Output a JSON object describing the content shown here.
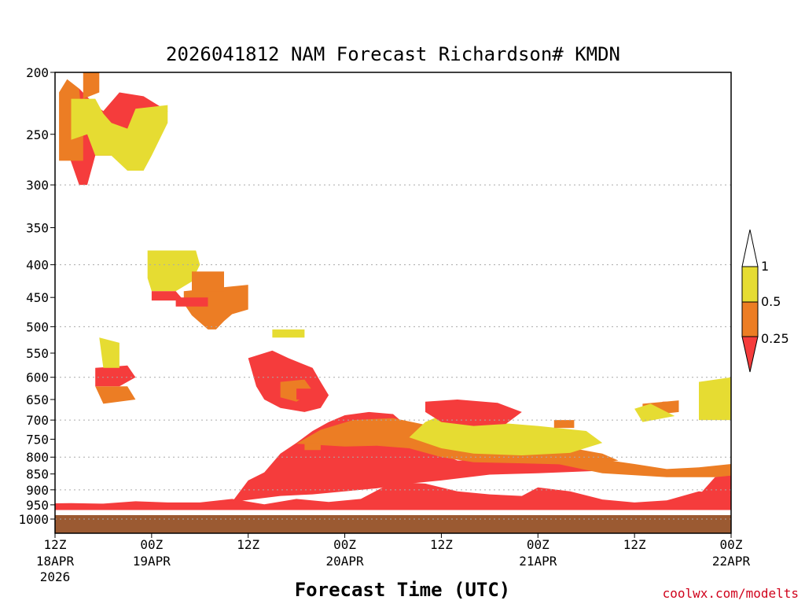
{
  "chart_data": {
    "type": "heatmap",
    "title": "2026041812 NAM Forecast Richardson# KMDN",
    "xlabel": "Forecast Time (UTC)",
    "ylabel": "",
    "credit": "coolwx.com/modelts",
    "x_range_hours": [
      0,
      84
    ],
    "x_ticks": [
      {
        "hour": 0,
        "label": "12Z",
        "sub": "18APR",
        "sub2": "2026"
      },
      {
        "hour": 12,
        "label": "00Z",
        "sub": "19APR",
        "sub2": ""
      },
      {
        "hour": 24,
        "label": "12Z",
        "sub": "",
        "sub2": ""
      },
      {
        "hour": 36,
        "label": "00Z",
        "sub": "20APR",
        "sub2": ""
      },
      {
        "hour": 48,
        "label": "12Z",
        "sub": "",
        "sub2": ""
      },
      {
        "hour": 60,
        "label": "00Z",
        "sub": "21APR",
        "sub2": ""
      },
      {
        "hour": 72,
        "label": "12Z",
        "sub": "",
        "sub2": ""
      },
      {
        "hour": 84,
        "label": "00Z",
        "sub": "22APR",
        "sub2": ""
      }
    ],
    "y_range_hPa": [
      1000,
      200
    ],
    "y_ticks": [
      200,
      250,
      300,
      350,
      400,
      450,
      500,
      550,
      600,
      650,
      700,
      750,
      800,
      850,
      900,
      950,
      1000
    ],
    "gridlines_hPa": [
      300,
      400,
      500,
      600,
      700,
      800,
      900,
      1000
    ],
    "colorbar": {
      "labels": [
        "1",
        "0.5",
        "0.25"
      ],
      "bins": [
        {
          "range": "0.5-1",
          "color": "#e6dc32"
        },
        {
          "range": "0.25-0.5",
          "color": "#ec7d24"
        },
        {
          "range": "<0.25",
          "color": "#f53c3c"
        }
      ],
      "over_color": "#ffffff",
      "under_color": "#f53c3c"
    },
    "ground_color": "#9b5a32",
    "regions": [
      {
        "cat": "low",
        "pts": [
          [
            0,
            968
          ],
          [
            84,
            968
          ],
          [
            84,
            918
          ],
          [
            80,
            905
          ],
          [
            76,
            935
          ],
          [
            72,
            942
          ],
          [
            68,
            932
          ],
          [
            64,
            905
          ],
          [
            60,
            892
          ],
          [
            58,
            920
          ],
          [
            54,
            915
          ],
          [
            50,
            905
          ],
          [
            46,
            880
          ],
          [
            42,
            875
          ],
          [
            38,
            930
          ],
          [
            34,
            940
          ],
          [
            30,
            930
          ],
          [
            26,
            948
          ],
          [
            22,
            930
          ],
          [
            18,
            942
          ],
          [
            14,
            942
          ],
          [
            10,
            938
          ],
          [
            6,
            946
          ],
          [
            2,
            944
          ],
          [
            0,
            945
          ]
        ]
      },
      {
        "cat": "low",
        "pts": [
          [
            22,
            940
          ],
          [
            24,
            870
          ],
          [
            26,
            845
          ],
          [
            28,
            790
          ],
          [
            30,
            760
          ],
          [
            32,
            728
          ],
          [
            34,
            705
          ],
          [
            36,
            688
          ],
          [
            39,
            680
          ],
          [
            42,
            685
          ],
          [
            44,
            720
          ],
          [
            46,
            760
          ],
          [
            48,
            790
          ],
          [
            50,
            810
          ],
          [
            55,
            808
          ],
          [
            60,
            812
          ],
          [
            66,
            816
          ],
          [
            68,
            840
          ],
          [
            60,
            848
          ],
          [
            54,
            852
          ],
          [
            48,
            870
          ],
          [
            44,
            880
          ],
          [
            40,
            895
          ],
          [
            36,
            905
          ],
          [
            32,
            915
          ],
          [
            28,
            920
          ]
        ]
      },
      {
        "cat": "mid",
        "pts": [
          [
            30,
            762
          ],
          [
            33,
            725
          ],
          [
            37,
            700
          ],
          [
            42,
            695
          ],
          [
            46,
            712
          ],
          [
            50,
            728
          ],
          [
            56,
            740
          ],
          [
            62,
            765
          ],
          [
            68,
            790
          ],
          [
            70,
            810
          ],
          [
            64,
            822
          ],
          [
            58,
            818
          ],
          [
            52,
            815
          ],
          [
            48,
            800
          ],
          [
            44,
            775
          ],
          [
            40,
            768
          ],
          [
            36,
            770
          ]
        ]
      },
      {
        "cat": "high",
        "pts": [
          [
            44,
            745
          ],
          [
            46,
            705
          ],
          [
            48,
            688
          ],
          [
            54,
            705
          ],
          [
            60,
            715
          ],
          [
            66,
            728
          ],
          [
            68,
            760
          ],
          [
            64,
            788
          ],
          [
            58,
            795
          ],
          [
            52,
            790
          ],
          [
            48,
            775
          ]
        ]
      },
      {
        "cat": "mid",
        "pts": [
          [
            60,
            808
          ],
          [
            66,
            800
          ],
          [
            72,
            820
          ],
          [
            76,
            835
          ],
          [
            80,
            830
          ],
          [
            84,
            820
          ],
          [
            84,
            860
          ],
          [
            76,
            860
          ],
          [
            68,
            848
          ]
        ]
      },
      {
        "cat": "low",
        "pts": [
          [
            80,
            918
          ],
          [
            82,
            860
          ],
          [
            84,
            855
          ],
          [
            84,
            918
          ]
        ]
      },
      {
        "cat": "low",
        "pts": [
          [
            74,
            672
          ],
          [
            75.5,
            655
          ],
          [
            77.5,
            655
          ],
          [
            77.5,
            675
          ],
          [
            74,
            675
          ]
        ]
      },
      {
        "cat": "mid",
        "pts": [
          [
            73,
            660
          ],
          [
            77.5,
            652
          ],
          [
            77.5,
            680
          ],
          [
            73,
            690
          ]
        ]
      },
      {
        "cat": "high",
        "pts": [
          [
            72,
            672
          ],
          [
            74,
            660
          ],
          [
            77,
            690
          ],
          [
            73,
            705
          ]
        ]
      },
      {
        "cat": "low",
        "pts": [
          [
            80.5,
            618
          ],
          [
            83,
            612
          ],
          [
            84,
            625
          ],
          [
            84,
            660
          ],
          [
            82,
            665
          ],
          [
            80.5,
            645
          ]
        ]
      },
      {
        "cat": "high",
        "pts": [
          [
            80,
            610
          ],
          [
            84,
            600
          ],
          [
            84,
            700
          ],
          [
            80,
            700
          ]
        ]
      },
      {
        "cat": "low",
        "pts": [
          [
            1.5,
            205
          ],
          [
            2,
            215
          ],
          [
            3,
            212
          ],
          [
            5,
            225
          ],
          [
            6,
            230
          ],
          [
            8,
            215
          ],
          [
            11,
            218
          ],
          [
            14,
            230
          ],
          [
            13,
            250
          ],
          [
            11,
            258
          ],
          [
            11,
            285
          ],
          [
            9,
            285
          ],
          [
            8,
            270
          ],
          [
            5,
            270
          ],
          [
            4,
            300
          ],
          [
            3,
            300
          ],
          [
            1.5,
            265
          ]
        ]
      },
      {
        "cat": "mid",
        "pts": [
          [
            0.5,
            215
          ],
          [
            1.5,
            205
          ],
          [
            3,
            212
          ],
          [
            3.5,
            250
          ],
          [
            3.5,
            275
          ],
          [
            0.5,
            275
          ]
        ]
      },
      {
        "cat": "mid",
        "pts": [
          [
            3.5,
            200
          ],
          [
            5.5,
            200
          ],
          [
            5.5,
            215
          ],
          [
            3.5,
            220
          ]
        ]
      },
      {
        "cat": "high",
        "pts": [
          [
            2,
            220
          ],
          [
            5,
            220
          ],
          [
            6,
            232
          ],
          [
            7,
            240
          ],
          [
            9,
            245
          ],
          [
            10,
            228
          ],
          [
            14,
            225
          ],
          [
            14,
            240
          ],
          [
            12,
            270
          ],
          [
            11,
            285
          ],
          [
            9,
            285
          ],
          [
            7,
            270
          ],
          [
            5,
            270
          ],
          [
            4,
            250
          ],
          [
            2,
            255
          ]
        ]
      },
      {
        "cat": "high",
        "pts": [
          [
            11.5,
            380
          ],
          [
            17.5,
            380
          ],
          [
            18,
            400
          ],
          [
            17,
            425
          ],
          [
            15,
            440
          ],
          [
            12,
            440
          ],
          [
            11.5,
            420
          ]
        ]
      },
      {
        "cat": "low",
        "pts": [
          [
            12,
            440
          ],
          [
            15,
            440
          ],
          [
            16,
            455
          ],
          [
            12,
            455
          ]
        ]
      },
      {
        "cat": "mid",
        "pts": [
          [
            16,
            440
          ],
          [
            24,
            430
          ],
          [
            24,
            470
          ],
          [
            22,
            478
          ],
          [
            21,
            490
          ],
          [
            20,
            505
          ],
          [
            19,
            505
          ],
          [
            17,
            480
          ],
          [
            16,
            460
          ]
        ]
      },
      {
        "cat": "high",
        "pts": [
          [
            27,
            505
          ],
          [
            31,
            505
          ],
          [
            31,
            520
          ],
          [
            27,
            520
          ]
        ]
      },
      {
        "cat": "low",
        "pts": [
          [
            24,
            560
          ],
          [
            27,
            545
          ],
          [
            29,
            560
          ],
          [
            32,
            580
          ],
          [
            33,
            610
          ],
          [
            34,
            640
          ],
          [
            33,
            670
          ],
          [
            31,
            680
          ],
          [
            28,
            670
          ],
          [
            26,
            650
          ],
          [
            25,
            620
          ]
        ]
      },
      {
        "cat": "mid",
        "pts": [
          [
            28,
            610
          ],
          [
            31,
            605
          ],
          [
            32,
            630
          ],
          [
            30,
            655
          ],
          [
            28,
            645
          ]
        ]
      },
      {
        "cat": "low",
        "pts": [
          [
            46,
            655
          ],
          [
            50,
            650
          ],
          [
            55,
            658
          ],
          [
            58,
            680
          ],
          [
            56,
            710
          ],
          [
            52,
            715
          ],
          [
            48,
            705
          ],
          [
            46,
            680
          ]
        ]
      },
      {
        "cat": "low",
        "pts": [
          [
            5,
            580
          ],
          [
            9,
            575
          ],
          [
            10,
            600
          ],
          [
            8,
            620
          ],
          [
            5,
            620
          ]
        ]
      },
      {
        "cat": "mid",
        "pts": [
          [
            5,
            620
          ],
          [
            9,
            620
          ],
          [
            10,
            650
          ],
          [
            6,
            660
          ]
        ]
      },
      {
        "cat": "high",
        "pts": [
          [
            5.5,
            520
          ],
          [
            8,
            530
          ],
          [
            8,
            580
          ],
          [
            6,
            580
          ]
        ]
      },
      {
        "cat": "low",
        "pts": [
          [
            15,
            450
          ],
          [
            19,
            450
          ],
          [
            19,
            465
          ],
          [
            15,
            465
          ]
        ]
      },
      {
        "cat": "mid",
        "pts": [
          [
            17,
            410
          ],
          [
            21,
            410
          ],
          [
            21,
            440
          ],
          [
            17,
            440
          ]
        ]
      }
    ],
    "cells": [
      {
        "cat": "mid",
        "pts": [
          [
            62,
            700
          ],
          [
            64.5,
            700
          ],
          [
            64.5,
            720
          ],
          [
            62,
            720
          ]
        ]
      },
      {
        "cat": "low",
        "pts": [
          [
            30,
            625
          ],
          [
            32,
            625
          ],
          [
            32,
            650
          ],
          [
            30,
            650
          ]
        ]
      },
      {
        "cat": "mid",
        "pts": [
          [
            31,
            760
          ],
          [
            33,
            760
          ],
          [
            33,
            780
          ],
          [
            31,
            780
          ]
        ]
      }
    ]
  }
}
